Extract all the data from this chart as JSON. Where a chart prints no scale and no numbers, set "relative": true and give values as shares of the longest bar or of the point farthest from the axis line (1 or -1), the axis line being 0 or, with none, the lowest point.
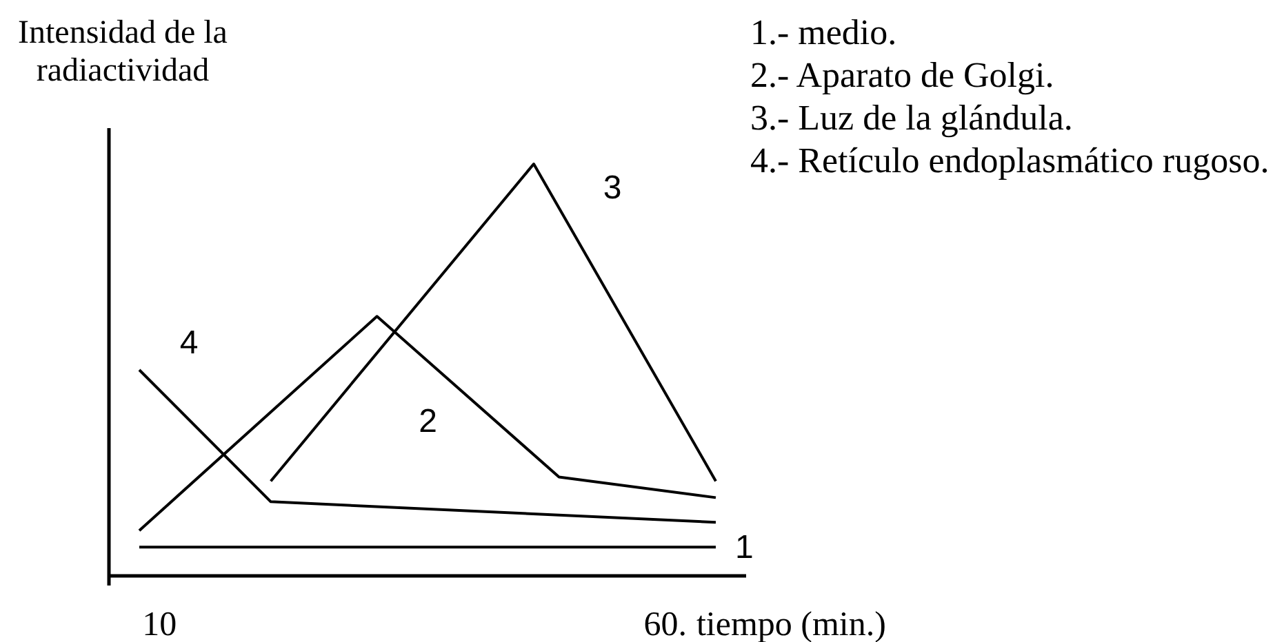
{
  "chart_data": {
    "type": "line",
    "ylabel": "Intensidad de la radiactividad",
    "xlabel": "tiempo (min.)",
    "relative": true,
    "xlim": [
      5,
      68
    ],
    "xticks": [
      {
        "value": 10,
        "label": "10"
      },
      {
        "value": 60,
        "label": "60."
      }
    ],
    "series": [
      {
        "name": "1",
        "color": "#000000",
        "x": [
          8,
          65
        ],
        "values": [
          0.07,
          0.07
        ]
      },
      {
        "name": "2",
        "color": "#000000",
        "x": [
          8,
          31.5,
          49.5,
          65
        ],
        "values": [
          0.11,
          0.63,
          0.24,
          0.19
        ]
      },
      {
        "name": "3",
        "color": "#000000",
        "x": [
          21,
          47,
          65
        ],
        "values": [
          0.23,
          1,
          0.23
        ]
      },
      {
        "name": "4",
        "color": "#000000",
        "x": [
          8,
          21,
          65
        ],
        "values": [
          0.5,
          0.18,
          0.13
        ]
      }
    ],
    "annotations": [
      "1.- medio.",
      "2.- Aparato de Golgi.",
      "3.- Luz de la glándula.",
      "4.- Retículo endoplasmático rugoso."
    ],
    "line_style": "solid"
  }
}
